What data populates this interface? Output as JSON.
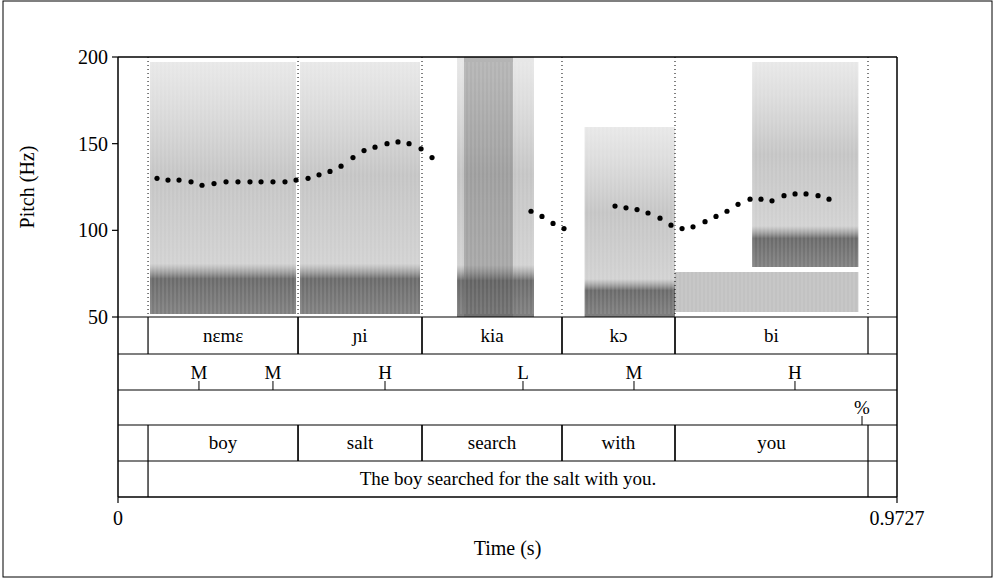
{
  "chart_data": {
    "type": "scatter",
    "x_label": "Time (s)",
    "y_label": "Pitch (Hz)",
    "xlim": [
      0,
      0.9727
    ],
    "xticks": [
      0,
      0.9727
    ],
    "ylim": [
      50,
      200
    ],
    "yticks": [
      50,
      100,
      150,
      200
    ],
    "marker": "dot",
    "color": "#000000",
    "series": [
      {
        "x": [
          0.0487,
          0.0624,
          0.0762,
          0.0912,
          0.1049,
          0.1199,
          0.1349,
          0.1498,
          0.1648,
          0.1786,
          0.1935,
          0.2085,
          0.2223,
          0.2373,
          0.251,
          0.2647,
          0.2785,
          0.2934,
          0.3072,
          0.3209,
          0.3359,
          0.3496,
          0.3634,
          0.3784,
          0.3921,
          0.5157,
          0.5294,
          0.5432,
          0.5569,
          0.6206,
          0.6343,
          0.6481,
          0.6618,
          0.6768,
          0.6905,
          0.7043,
          0.718,
          0.733,
          0.7467,
          0.7604,
          0.7742,
          0.7892,
          0.8029,
          0.8166,
          0.8316,
          0.8454,
          0.8591,
          0.8741,
          0.8878
        ],
        "values": [
          130,
          129,
          129,
          128,
          126,
          127,
          128,
          128,
          128,
          128,
          128,
          128,
          129,
          130,
          132,
          134,
          137,
          142,
          146,
          148,
          150,
          151,
          150,
          147,
          142,
          111,
          108,
          104,
          101,
          114,
          113,
          112,
          110,
          107,
          103,
          101,
          102,
          105,
          108,
          111,
          115,
          118,
          118,
          117,
          120,
          121,
          121,
          120,
          118
        ]
      }
    ],
    "tiers": [
      {
        "intervals": [
          {
            "start": 0.0375,
            "end": 0.2248,
            "label": "nɛmɛ"
          },
          {
            "start": 0.2248,
            "end": 0.3796,
            "label": "ɲi"
          },
          {
            "start": 0.3796,
            "end": 0.5544,
            "label": "kia"
          },
          {
            "start": 0.5544,
            "end": 0.6955,
            "label": "kɔ"
          },
          {
            "start": 0.6955,
            "end": 0.9365,
            "label": "bi"
          }
        ]
      },
      {
        "points": [
          {
            "time": 0.1011,
            "label": "M"
          },
          {
            "time": 0.1935,
            "label": "M"
          },
          {
            "time": 0.3334,
            "label": "H"
          },
          {
            "time": 0.5057,
            "label": "L"
          },
          {
            "time": 0.6443,
            "label": "M"
          },
          {
            "time": 0.8453,
            "label": "H"
          }
        ]
      },
      {
        "points": [
          {
            "time": 0.929,
            "label": "%"
          }
        ]
      },
      {
        "intervals": [
          {
            "start": 0.0375,
            "end": 0.2248,
            "label": "boy"
          },
          {
            "start": 0.2248,
            "end": 0.3796,
            "label": "salt"
          },
          {
            "start": 0.3796,
            "end": 0.5544,
            "label": "search"
          },
          {
            "start": 0.5544,
            "end": 0.6955,
            "label": "with"
          },
          {
            "start": 0.6955,
            "end": 0.9365,
            "label": "you"
          }
        ]
      },
      {
        "intervals": [
          {
            "start": 0.0375,
            "end": 0.9365,
            "label": "The boy searched for the salt with you."
          }
        ]
      }
    ]
  }
}
